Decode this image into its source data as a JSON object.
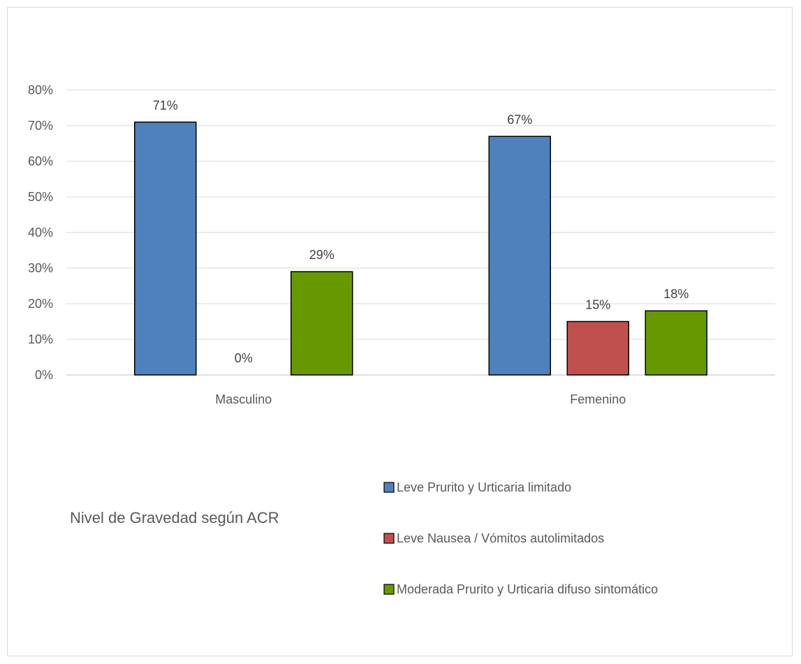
{
  "chart_data": {
    "type": "bar",
    "categories": [
      "Masculino",
      "Femenino"
    ],
    "series": [
      {
        "name": "Leve Prurito y Urticaria limitado",
        "values": [
          71,
          67
        ],
        "labels": [
          "71%",
          "67%"
        ],
        "color": "#4f81bd"
      },
      {
        "name": "Leve Nausea / Vómitos autolimitados",
        "values": [
          0,
          15
        ],
        "labels": [
          "0%",
          "15%"
        ],
        "color": "#c0504d"
      },
      {
        "name": "Moderada Prurito y Urticaria difuso sintomático",
        "values": [
          29,
          18
        ],
        "labels": [
          "29%",
          "18%"
        ],
        "color": "#669900"
      }
    ],
    "ylim": [
      0,
      80
    ],
    "yticks": [
      0,
      10,
      20,
      30,
      40,
      50,
      60,
      70,
      80
    ],
    "ytick_labels": [
      "0%",
      "10%",
      "20%",
      "30%",
      "40%",
      "50%",
      "60%",
      "70%",
      "80%"
    ],
    "legend_title": "Nivel de Gravedad según ACR",
    "legend_position": "bottom",
    "grid": true
  }
}
